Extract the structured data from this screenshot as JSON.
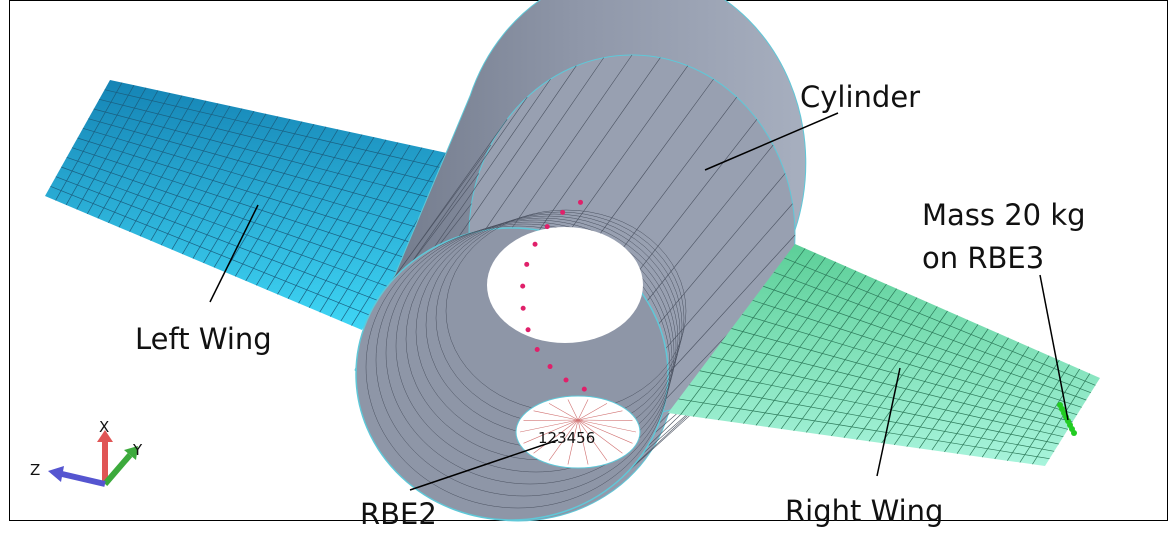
{
  "labels": {
    "cylinder": "Cylinder",
    "mass_line1": "Mass 20 kg",
    "mass_line2": "on RBE3",
    "left_wing": "Left Wing",
    "rbe2": "RBE2",
    "right_wing": "Right Wing",
    "rbe2_dof": "123456"
  },
  "triad": {
    "x": "X",
    "y": "Y",
    "z": "Z"
  }
}
